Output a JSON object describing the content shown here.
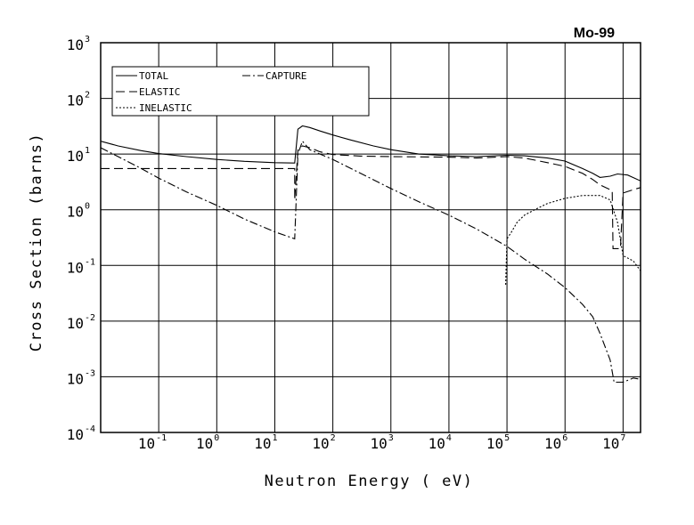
{
  "chart_data": {
    "type": "line",
    "title": "Mo-99",
    "xlabel": "Neutron Energy ( eV)",
    "ylabel": "Cross Section (barns)",
    "x_scale": "log",
    "y_scale": "log",
    "xlim": [
      0.01,
      20000000
    ],
    "ylim": [
      0.0001,
      1000
    ],
    "grid": true,
    "legend_position": "top-left",
    "x_ticks": [
      {
        "base": "10",
        "exp": "-1",
        "value": 0.1
      },
      {
        "base": "10",
        "exp": "0",
        "value": 1
      },
      {
        "base": "10",
        "exp": "1",
        "value": 10
      },
      {
        "base": "10",
        "exp": "2",
        "value": 100
      },
      {
        "base": "10",
        "exp": "3",
        "value": 1000
      },
      {
        "base": "10",
        "exp": "4",
        "value": 10000
      },
      {
        "base": "10",
        "exp": "5",
        "value": 100000
      },
      {
        "base": "10",
        "exp": "6",
        "value": 1000000
      },
      {
        "base": "10",
        "exp": "7",
        "value": 10000000
      }
    ],
    "y_ticks": [
      {
        "base": "10",
        "exp": "-4",
        "value": 0.0001
      },
      {
        "base": "10",
        "exp": "-3",
        "value": 0.001
      },
      {
        "base": "10",
        "exp": "-2",
        "value": 0.01
      },
      {
        "base": "10",
        "exp": "-1",
        "value": 0.1
      },
      {
        "base": "10",
        "exp": "0",
        "value": 1
      },
      {
        "base": "10",
        "exp": "1",
        "value": 10
      },
      {
        "base": "10",
        "exp": "2",
        "value": 100
      },
      {
        "base": "10",
        "exp": "3",
        "value": 1000
      }
    ],
    "series": [
      {
        "name": "TOTAL",
        "dash": "solid",
        "points": [
          [
            0.01,
            17
          ],
          [
            0.02,
            14
          ],
          [
            0.05,
            11.5
          ],
          [
            0.1,
            10.2
          ],
          [
            0.3,
            9
          ],
          [
            1,
            8
          ],
          [
            3,
            7.4
          ],
          [
            10,
            7
          ],
          [
            21,
            6.9
          ],
          [
            22,
            6.9
          ],
          [
            25,
            28
          ],
          [
            30,
            32
          ],
          [
            40,
            30
          ],
          [
            60,
            26
          ],
          [
            100,
            22
          ],
          [
            200,
            18
          ],
          [
            500,
            14
          ],
          [
            1000,
            12
          ],
          [
            3000,
            10
          ],
          [
            10000,
            9.3
          ],
          [
            30000,
            9
          ],
          [
            100000,
            9.5
          ],
          [
            200000,
            9.3
          ],
          [
            500000,
            8.5
          ],
          [
            1000000,
            7.5
          ],
          [
            2000000,
            5.5
          ],
          [
            3000000,
            4.5
          ],
          [
            4000000,
            3.8
          ],
          [
            6000000,
            4
          ],
          [
            8000000,
            4.4
          ],
          [
            12000000,
            4.2
          ],
          [
            20000000,
            3.3
          ]
        ]
      },
      {
        "name": "ELASTIC",
        "dash": "long-dash",
        "points": [
          [
            0.01,
            5.5
          ],
          [
            1,
            5.5
          ],
          [
            10,
            5.5
          ],
          [
            22,
            5.5
          ],
          [
            22,
            1.5
          ],
          [
            25,
            12
          ],
          [
            30,
            14
          ],
          [
            40,
            13
          ],
          [
            60,
            11
          ],
          [
            100,
            9.8
          ],
          [
            300,
            9.2
          ],
          [
            1000,
            9
          ],
          [
            10000,
            8.8
          ],
          [
            30000,
            8.5
          ],
          [
            100000,
            9
          ],
          [
            200000,
            8.5
          ],
          [
            500000,
            7
          ],
          [
            1000000,
            6
          ],
          [
            2000000,
            4.5
          ],
          [
            3000000,
            3.5
          ],
          [
            4000000,
            2.8
          ],
          [
            5000000,
            2.5
          ],
          [
            6000000,
            2.3
          ],
          [
            6500000,
            2.2
          ],
          [
            6700000,
            0.2
          ],
          [
            8000000,
            0.2
          ],
          [
            9000000,
            0.2
          ],
          [
            10000000,
            2
          ],
          [
            15000000,
            2.3
          ],
          [
            20000000,
            2.5
          ]
        ]
      },
      {
        "name": "CAPTURE",
        "dash": "dash-dot",
        "points": [
          [
            0.01,
            13
          ],
          [
            0.02,
            9
          ],
          [
            0.05,
            5.5
          ],
          [
            0.1,
            3.7
          ],
          [
            0.3,
            2.1
          ],
          [
            1,
            1.2
          ],
          [
            3,
            0.68
          ],
          [
            10,
            0.4
          ],
          [
            22,
            0.3
          ],
          [
            22,
            0.3
          ],
          [
            25,
            10
          ],
          [
            30,
            17
          ],
          [
            40,
            12
          ],
          [
            60,
            10
          ],
          [
            100,
            8
          ],
          [
            300,
            4.5
          ],
          [
            1000,
            2.4
          ],
          [
            3000,
            1.4
          ],
          [
            10000,
            0.8
          ],
          [
            30000,
            0.45
          ],
          [
            100000,
            0.22
          ],
          [
            200000,
            0.13
          ],
          [
            500000,
            0.07
          ],
          [
            1000000,
            0.04
          ],
          [
            2000000,
            0.02
          ],
          [
            3000000,
            0.012
          ],
          [
            4000000,
            0.006
          ],
          [
            6000000,
            0.002
          ],
          [
            7000000,
            0.0008
          ],
          [
            10000000,
            0.0008
          ],
          [
            15000000,
            0.00095
          ],
          [
            20000000,
            0.0009
          ]
        ]
      },
      {
        "name": "INELASTIC",
        "dash": "dotted",
        "points": [
          [
            95000,
            0.045
          ],
          [
            100000,
            0.3
          ],
          [
            120000,
            0.4
          ],
          [
            150000,
            0.6
          ],
          [
            200000,
            0.8
          ],
          [
            300000,
            1
          ],
          [
            500000,
            1.3
          ],
          [
            1000000,
            1.6
          ],
          [
            2000000,
            1.8
          ],
          [
            4000000,
            1.8
          ],
          [
            6000000,
            1.5
          ],
          [
            8000000,
            0.6
          ],
          [
            10000000,
            0.15
          ],
          [
            15000000,
            0.12
          ],
          [
            20000000,
            0.08
          ]
        ]
      }
    ]
  }
}
